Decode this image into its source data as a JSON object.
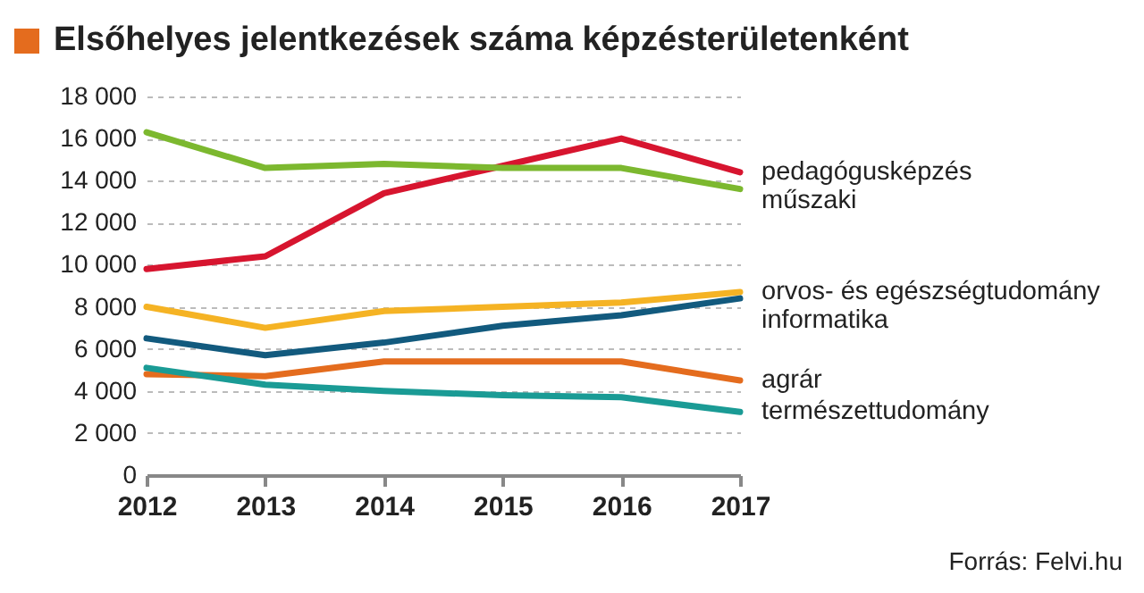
{
  "chart_data": {
    "type": "line",
    "title": "Elsőhelyes jelentkezések száma képzésterületenként",
    "categories": [
      "2012",
      "2013",
      "2014",
      "2015",
      "2016",
      "2017"
    ],
    "series": [
      {
        "name": "pedagógusképzés",
        "color": "#d7152f",
        "values": [
          9800,
          10400,
          13400,
          14700,
          16000,
          14400
        ]
      },
      {
        "name": "műszaki",
        "color": "#7cb82f",
        "values": [
          16300,
          14600,
          14800,
          14600,
          14600,
          13600
        ]
      },
      {
        "name": "orvos- és egészségtudomány",
        "color": "#f5b324",
        "values": [
          8000,
          7000,
          7800,
          8000,
          8200,
          8700
        ]
      },
      {
        "name": "informatika",
        "color": "#125a7e",
        "values": [
          6500,
          5700,
          6300,
          7100,
          7600,
          8400
        ]
      },
      {
        "name": "agrár",
        "color": "#e46c1e",
        "values": [
          4800,
          4700,
          5400,
          5400,
          5400,
          4500
        ]
      },
      {
        "name": "természettudomány",
        "color": "#1a9b95",
        "values": [
          5100,
          4300,
          4000,
          3800,
          3700,
          3000
        ]
      }
    ],
    "ylim": [
      0,
      18000
    ],
    "yticks": [
      0,
      {
        "value": 2000,
        "label": "2 000"
      },
      {
        "value": 4000,
        "label": "4 000"
      },
      {
        "value": 6000,
        "label": "6 000"
      },
      {
        "value": 8000,
        "label": "8 000"
      },
      {
        "value": 10000,
        "label": "10 000"
      },
      {
        "value": 12000,
        "label": "12 000"
      },
      {
        "value": 14000,
        "label": "14 000"
      },
      {
        "value": 16000,
        "label": "16 000"
      },
      {
        "value": 18000,
        "label": "18 000"
      }
    ],
    "grid": "y",
    "legend": false,
    "marker": "none",
    "line_style": "solid",
    "annotations": [
      "Forrás: Felvi.hu"
    ]
  }
}
